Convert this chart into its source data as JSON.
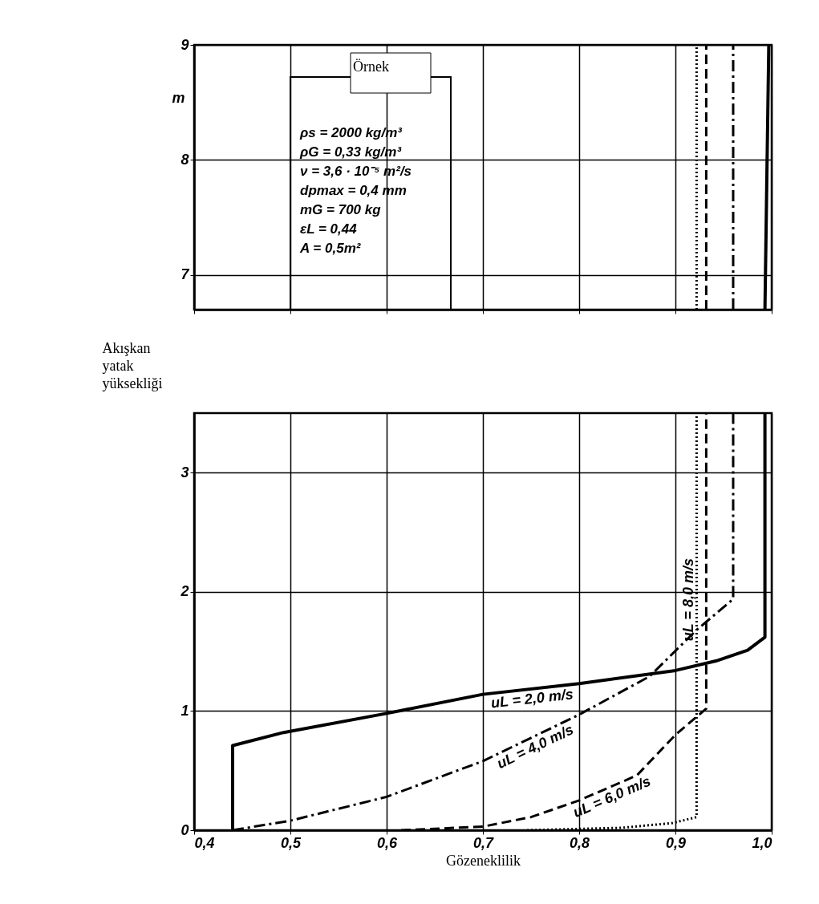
{
  "chart_data": [
    {
      "type": "line",
      "annotations": [
        "Örnek",
        "ρs = 2000 kg/m³",
        "ρG = 0,33 kg/m³",
        "ν = 3,6 · 10⁻⁵ m²/s",
        "dpmax = 0,4 mm",
        "mG = 700 kg",
        "εL = 0,44",
        "A = 0,5m²"
      ],
      "ylabel": "m",
      "series": [
        {
          "color": "#000000",
          "line_style": "solid",
          "x": [
            0.993,
            0.997
          ],
          "values": [
            6.7,
            9
          ]
        },
        {
          "color": "#000000",
          "line_style": "dashdot",
          "x": [
            0.96,
            0.96
          ],
          "values": [
            6.7,
            9
          ]
        },
        {
          "color": "#000000",
          "line_style": "dashed",
          "x": [
            0.932,
            0.932
          ],
          "values": [
            6.7,
            9
          ]
        },
        {
          "color": "#000000",
          "line_style": "dotted",
          "x": [
            0.922,
            0.922
          ],
          "values": [
            6.7,
            9
          ]
        }
      ],
      "xlim": [
        0.4,
        1.0
      ],
      "xticks": [
        0.4,
        0.5,
        0.6,
        0.7,
        0.8,
        0.9,
        1.0
      ],
      "ylim": [
        6.7,
        9
      ],
      "yticks": [
        7,
        8,
        9
      ],
      "grid": true,
      "tick_labels": "y",
      "marker": "none"
    },
    {
      "type": "line",
      "xlabel": "Gözeneklilik",
      "ylabel": "Akışkan yatak yüksekliği",
      "series": [
        {
          "name": "uL = 2,0 m/s",
          "color": "#000000",
          "line_style": "solid",
          "x": [
            0.44,
            0.44,
            0.493,
            0.6,
            0.7,
            0.8,
            0.9,
            0.942,
            0.975,
            0.993,
            0.993
          ],
          "values": [
            0,
            0.71,
            0.82,
            0.98,
            1.14,
            1.23,
            1.34,
            1.42,
            1.51,
            1.62,
            3.5
          ]
        },
        {
          "name": "uL = 4,0 m/s",
          "color": "#000000",
          "line_style": "dashdot",
          "x": [
            0.44,
            0.5,
            0.6,
            0.7,
            0.8,
            0.873,
            0.922,
            0.96,
            0.96
          ],
          "values": [
            0,
            0.08,
            0.28,
            0.58,
            0.97,
            1.29,
            1.68,
            1.94,
            3.5
          ]
        },
        {
          "name": "uL = 6,0 m/s",
          "color": "#000000",
          "line_style": "dashed",
          "x": [
            0.615,
            0.7,
            0.75,
            0.8,
            0.86,
            0.9,
            0.932,
            0.932
          ],
          "values": [
            0,
            0.03,
            0.11,
            0.25,
            0.46,
            0.8,
            1.02,
            3.5
          ]
        },
        {
          "name": "uL = 8,0 m/s",
          "color": "#000000",
          "line_style": "dotted",
          "x": [
            0.746,
            0.844,
            0.897,
            0.922,
            0.922
          ],
          "values": [
            0,
            0.02,
            0.06,
            0.11,
            3.5
          ]
        }
      ],
      "xlim": [
        0.4,
        1.0
      ],
      "xticks": [
        {
          "value": 0.4,
          "label": "0,4"
        },
        {
          "value": 0.5,
          "label": "0,5"
        },
        {
          "value": 0.6,
          "label": "0,6"
        },
        {
          "value": 0.7,
          "label": "0,7"
        },
        {
          "value": 0.8,
          "label": "0,8"
        },
        {
          "value": 0.9,
          "label": "0,9"
        },
        {
          "value": 1.0,
          "label": "1,0"
        }
      ],
      "ylim": [
        0,
        3.5
      ],
      "yticks": [
        0,
        1,
        2,
        3
      ],
      "grid": true,
      "marker": "none"
    }
  ]
}
